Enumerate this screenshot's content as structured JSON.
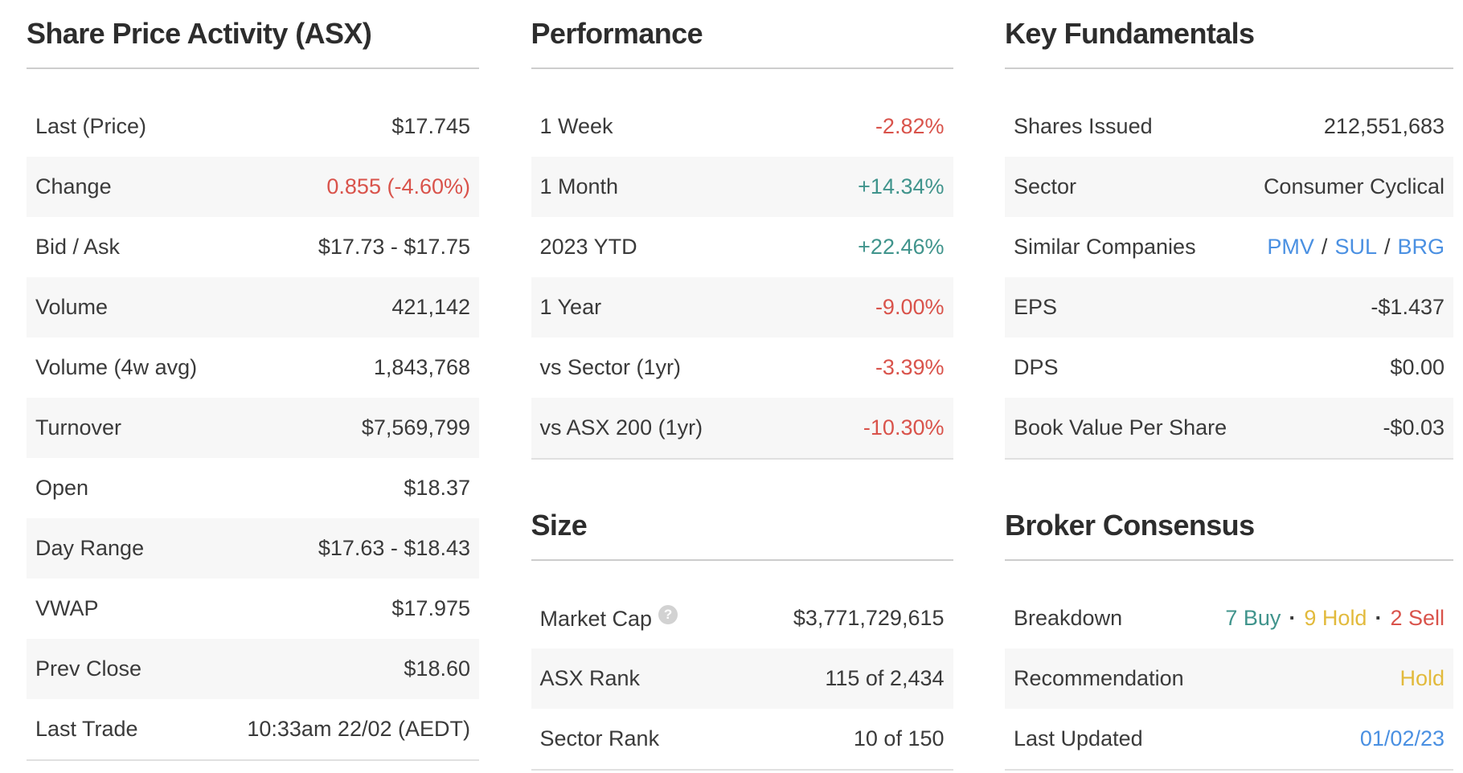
{
  "palette": {
    "text": "#3a3a3a",
    "title": "#2d2d2d",
    "negative": "#d9534b",
    "positive": "#40948c",
    "gold": "#e2ba3c",
    "link": "#4a90e2",
    "row_alt_bg": "#f7f7f7",
    "divider": "#cdcdcd",
    "table_bottom_border": "#e0e0e0",
    "help_icon_bg": "#d2d2d2",
    "help_icon_glyph_color": "#ffffff",
    "page_bg": "#ffffff"
  },
  "share_price_activity": {
    "title": "Share Price Activity (ASX)",
    "rows": [
      {
        "label": "Last (Price)",
        "value": "$17.745"
      },
      {
        "label": "Change",
        "value": "0.855 (-4.60%)"
      },
      {
        "label": "Bid / Ask",
        "value": "$17.73 - $17.75"
      },
      {
        "label": "Volume",
        "value": "421,142"
      },
      {
        "label": "Volume (4w avg)",
        "value": "1,843,768"
      },
      {
        "label": "Turnover",
        "value": "$7,569,799"
      },
      {
        "label": "Open",
        "value": "$18.37"
      },
      {
        "label": "Day Range",
        "value": "$17.63 - $18.43"
      },
      {
        "label": "VWAP",
        "value": "$17.975"
      },
      {
        "label": "Prev Close",
        "value": "$18.60"
      },
      {
        "label": "Last Trade",
        "value": "10:33am 22/02 (AEDT)"
      }
    ]
  },
  "performance": {
    "title": "Performance",
    "rows": [
      {
        "label": "1 Week",
        "value": "-2.82%",
        "tone": "negative"
      },
      {
        "label": "1 Month",
        "value": "+14.34%",
        "tone": "positive"
      },
      {
        "label": "2023 YTD",
        "value": "+22.46%",
        "tone": "positive"
      },
      {
        "label": "1 Year",
        "value": "-9.00%",
        "tone": "negative"
      },
      {
        "label": "vs Sector (1yr)",
        "value": "-3.39%",
        "tone": "negative"
      },
      {
        "label": "vs ASX 200 (1yr)",
        "value": "-10.30%",
        "tone": "negative"
      }
    ]
  },
  "size": {
    "title": "Size",
    "rows": [
      {
        "label": "Market Cap",
        "help_icon": "?",
        "value": "$3,771,729,615"
      },
      {
        "label": "ASX Rank",
        "value": "115 of 2,434"
      },
      {
        "label": "Sector Rank",
        "value": "10 of 150"
      }
    ]
  },
  "key_fundamentals": {
    "title": "Key Fundamentals",
    "rows": [
      {
        "label": "Shares Issued",
        "value": "212,551,683"
      },
      {
        "label": "Sector",
        "value": "Consumer Cyclical"
      },
      {
        "label": "Similar Companies",
        "tickers": [
          "PMV",
          "SUL",
          "BRG"
        ],
        "ticker_separator": "/"
      },
      {
        "label": "EPS",
        "value": "-$1.437"
      },
      {
        "label": "DPS",
        "value": "$0.00"
      },
      {
        "label": "Book Value Per Share",
        "value": "-$0.03"
      }
    ]
  },
  "broker_consensus": {
    "title": "Broker Consensus",
    "rows": [
      {
        "label": "Breakdown",
        "buy": "7 Buy",
        "hold": "9 Hold",
        "sell": "2 Sell",
        "separator": "·"
      },
      {
        "label": "Recommendation",
        "value": "Hold",
        "tone": "gold"
      },
      {
        "label": "Last Updated",
        "value": "01/02/23",
        "tone": "link"
      }
    ]
  }
}
